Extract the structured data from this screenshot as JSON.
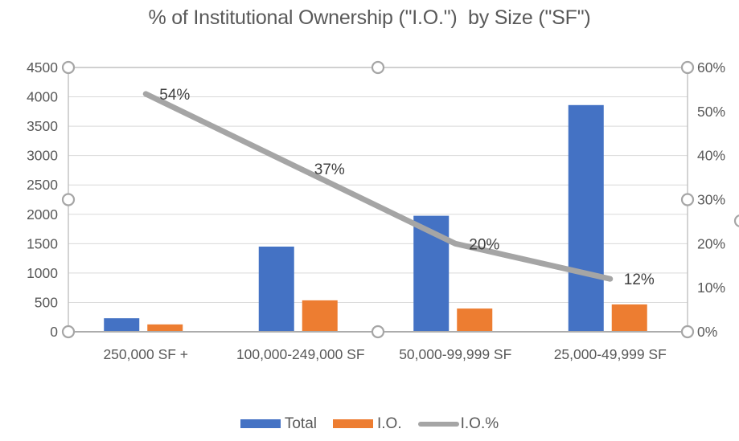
{
  "chart_data": {
    "type": "combo-bar-line",
    "title": "% of Institutional Ownership (\"I.O.\")  by Size (\"SF\")",
    "categories": [
      "250,000 SF +",
      "100,000-249,000 SF",
      "50,000-99,999 SF",
      "25,000-49,999 SF"
    ],
    "series": [
      {
        "name": "Total",
        "type": "bar",
        "axis": "left",
        "color": "#4472C4",
        "values": [
          230,
          1450,
          1975,
          3860
        ]
      },
      {
        "name": "I.O.",
        "type": "bar",
        "axis": "left",
        "color": "#ED7D31",
        "values": [
          125,
          535,
          395,
          465
        ]
      },
      {
        "name": "I.O.%",
        "type": "line",
        "axis": "right",
        "color": "#A5A5A5",
        "values": [
          54,
          37,
          20,
          12
        ],
        "point_labels": [
          "54%",
          "37%",
          "20%",
          "12%"
        ]
      }
    ],
    "axes": {
      "left": {
        "min": 0,
        "max": 4500,
        "step": 500,
        "ticks": [
          "0",
          "500",
          "1000",
          "1500",
          "2000",
          "2500",
          "3000",
          "3500",
          "4000",
          "4500"
        ]
      },
      "right": {
        "min": 0,
        "max": 60,
        "step": 10,
        "ticks": [
          "0%",
          "10%",
          "20%",
          "30%",
          "40%",
          "50%",
          "60%"
        ]
      }
    },
    "grid": true,
    "legend_position": "bottom"
  },
  "colors": {
    "bar_total": "#4472C4",
    "bar_io": "#ED7D31",
    "line_io_pct": "#A5A5A5",
    "gridline": "#D9D9D9",
    "plot_border": "#C0C0C0",
    "axis_line": "#ACACAC",
    "tick_text": "#595959",
    "data_label_text": "#404040",
    "title_text": "#595959",
    "handle_stroke": "#A6A6A6",
    "handle_fill": "#FFFFFF"
  },
  "selection": {
    "plot_area_selected": true,
    "handle_count": 8,
    "chart_edge_handle_visible": true
  }
}
